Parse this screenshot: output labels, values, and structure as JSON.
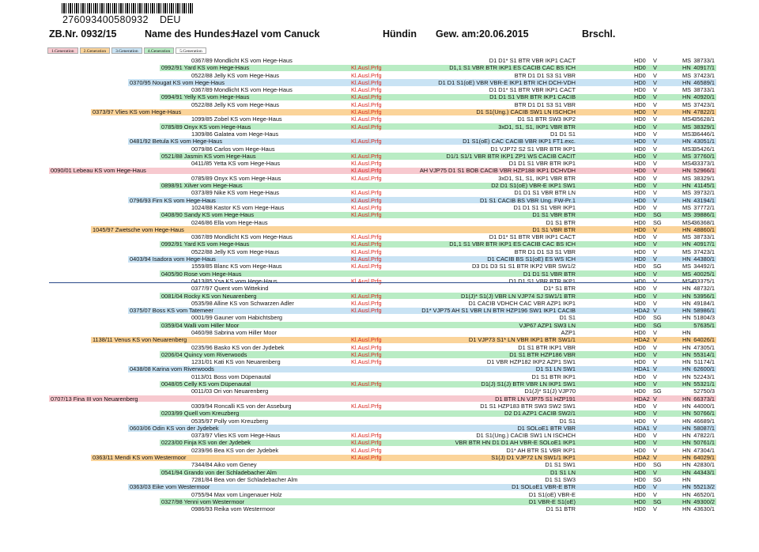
{
  "header": {
    "barcode_number": "276093400580932",
    "country": "DEU",
    "zb_nr": "ZB.Nr. 0932/15",
    "name_label": "Name des Hundes:",
    "dog_name": "Hazel vom Canuck",
    "sex": "Hündin",
    "birth_label": "Gew. am:",
    "birth_date": "20.06.2015",
    "color": "Brschl."
  },
  "generations": [
    {
      "label": "1.Generation",
      "color": "#f7c9cf"
    },
    {
      "label": "2.Generation",
      "color": "#fbd49a"
    },
    {
      "label": "3.Generation",
      "color": "#c9e3f4"
    },
    {
      "label": "4.Generation",
      "color": "#b9ecc4"
    },
    {
      "label": "5.Generation",
      "color": "#ffffff"
    }
  ],
  "rows": [
    {
      "gen": 5,
      "dog": "0367/89 Mondlicht KS vom Hege-Haus",
      "ausl": "",
      "fin": "D1 D1* S1 BTR VBR IKP1 CACT",
      "hd": "HD0",
      "v": "V",
      "c2": "MS",
      "reg": "38733/1"
    },
    {
      "gen": 4,
      "dog": "0992/91 Yard KS vom Hege-Haus",
      "ausl": "Kl.Ausl.Prfg",
      "fin": "D1,1 S1 VBR BTR IKP1 ES CACIB CAC BS ICH",
      "hd": "HD0",
      "v": "V",
      "c2": "HN",
      "reg": "40917/1"
    },
    {
      "gen": 5,
      "dog": "0522/88 Jelly KS vom Hege-Haus",
      "ausl": "Kl.Ausl.Prfg",
      "fin": "BTR D1 D1 S3 S1 VBR",
      "hd": "HD0",
      "v": "V",
      "c2": "MS",
      "reg": "37423/1"
    },
    {
      "gen": 3,
      "dog": "0370/95 Nougat KS vom Hege-Haus",
      "ausl": "Kl.Ausl.Prfg",
      "fin": "D1 D1 S1(oE) VBR VBR-E IKP1 BTR ICH DCH-VDH",
      "hd": "HD0",
      "v": "V",
      "c2": "HN",
      "reg": "46589/1"
    },
    {
      "gen": 5,
      "dog": "0367/89 Mondlicht KS vom Hege-Haus",
      "ausl": "Kl.Ausl.Prfg",
      "fin": "D1 D1* S1 BTR VBR IKP1 CACT",
      "hd": "HD0",
      "v": "V",
      "c2": "MS",
      "reg": "38733/1"
    },
    {
      "gen": 4,
      "dog": "0994/91 Yelly KS vom Hege-Haus",
      "ausl": "Kl.Ausl.Prfg",
      "fin": "D1 D1 S1 VBR BTR IKP1 CACIB",
      "hd": "HD0",
      "v": "V",
      "c2": "HN",
      "reg": "40920/1"
    },
    {
      "gen": 5,
      "dog": "0522/88 Jelly KS vom Hege-Haus",
      "ausl": "Kl.Ausl.Prfg",
      "fin": "BTR D1 D1 S3 S1 VBR",
      "hd": "HD0",
      "v": "V",
      "c2": "MS",
      "reg": "37423/1"
    },
    {
      "gen": 2,
      "dog": "0373/97 Vlies KS vom Hege-Haus",
      "ausl": "Kl.Ausl.Prfg",
      "fin": "D1 S1(Ung.) CACIB SW1 LN ISCHCH",
      "hd": "HD0",
      "v": "V",
      "c2": "HN",
      "reg": "47822/1"
    },
    {
      "gen": 5,
      "dog": "1099/85 Zobel KS vom Hege-Haus",
      "ausl": "Kl.Ausl.Prfg",
      "fin": "D1 S1 BTR SW3 IKP2",
      "hd": "HD0",
      "v": "V",
      "c2": "MS4",
      "reg": "35628/1"
    },
    {
      "gen": 4,
      "dog": "0785/89 Onyx KS vom Hege-Haus",
      "ausl": "Kl.Ausl.Prfg",
      "fin": "3xD1, S1, S1, IKP1 VBR BTR",
      "hd": "HD0",
      "v": "V",
      "c2": "MS",
      "reg": "38329/1"
    },
    {
      "gen": 5,
      "dog": "1309/86 Galatea vom Hege-Haus",
      "ausl": "",
      "fin": "D1 D1 S1",
      "hd": "HD0",
      "v": "V",
      "c2": "MS3",
      "reg": "36446/1"
    },
    {
      "gen": 3,
      "dog": "0481/92 Betula KS vom Hege-Haus",
      "ausl": "Kl.Ausl.Prfg",
      "fin": "D1 S1(oE) CAC CACIB VBR IKP1 FT1.exc.",
      "hd": "HD0",
      "v": "V",
      "c2": "HN",
      "reg": "43051/1"
    },
    {
      "gen": 5,
      "dog": "0079/86 Carlos vom Hege-Haus",
      "ausl": "",
      "fin": "D1 VJP72 S2 S1 VBR BTR IKP1",
      "hd": "HD0",
      "v": "V",
      "c2": "MS3",
      "reg": "35426/1"
    },
    {
      "gen": 4,
      "dog": "0521/88 Jasmin KS vom Hege-Haus",
      "ausl": "Kl.Ausl.Prfg",
      "fin": "D1/1 S1/1 VBR BTR IKP1 ZP1 WS CACIB CACIT",
      "hd": "HD0",
      "v": "V",
      "c2": "MS",
      "reg": "37760/1"
    },
    {
      "gen": 5,
      "dog": "0411/85 Yetta KS vom Hege-Haus",
      "ausl": "Kl.Ausl.Prfg",
      "fin": "D1 D1 S1 VBR BTR IKP1",
      "hd": "HD0",
      "v": "V",
      "c2": "MS4",
      "reg": "33373/1"
    },
    {
      "gen": 1,
      "dog": "0090/01 Lebeau KS vom Hege-Haus",
      "ausl": "Kl.Ausl.Prfg",
      "fin": "AH VJP75 D1 S1 BOB CACIB VBR HZP188 IKP1 DCHVDH",
      "hd": "HD0",
      "v": "V",
      "c2": "HN",
      "reg": "52966/1"
    },
    {
      "gen": 5,
      "dog": "0785/89 Onyx KS vom Hege-Haus",
      "ausl": "Kl.Ausl.Prfg",
      "fin": "3xD1, S1, S1, IKP1 VBR BTR",
      "hd": "HD0",
      "v": "V",
      "c2": "MS",
      "reg": "38329/1"
    },
    {
      "gen": 4,
      "dog": "0898/91 Xilver vom Hege-Haus",
      "ausl": "",
      "fin": "D2 D1 S1(oE) VBR-E IKP1 SW1",
      "hd": "HD0",
      "v": "V",
      "c2": "HN",
      "reg": "41145/1"
    },
    {
      "gen": 5,
      "dog": "0373/89 Nike KS vom Hege-Haus",
      "ausl": "Kl.Ausl.Prfg",
      "fin": "D1 D1 S1 VBR BTR LN",
      "hd": "HD0",
      "v": "V",
      "c2": "MS",
      "reg": "39732/1"
    },
    {
      "gen": 3,
      "dog": "0796/93 Firn KS vom Hege-Haus",
      "ausl": "Kl.Ausl.Prfg",
      "fin": "D1 S1 CACIB BS VBR Ung. FW-Pr.1",
      "hd": "HD0",
      "v": "V",
      "c2": "HN",
      "reg": "43194/1"
    },
    {
      "gen": 5,
      "dog": "1024/88 Kastor KS vom Hege-Haus",
      "ausl": "Kl.Ausl.Prfg",
      "fin": "D1 D1 S1 S1 VBR IKP1",
      "hd": "HD0",
      "v": "V",
      "c2": "MS",
      "reg": "37772/1"
    },
    {
      "gen": 4,
      "dog": "0408/90 Sandy KS vom Hege-Haus",
      "ausl": "Kl.Ausl.Prfg",
      "fin": "D1 S1 VBR BTR",
      "hd": "HD0",
      "v": "SG",
      "c2": "MS",
      "reg": "39886/1"
    },
    {
      "gen": 5,
      "dog": "0246/86 Ella vom Hege-Haus",
      "ausl": "",
      "fin": "D1 S1 BTR",
      "hd": "HD0",
      "v": "SG",
      "c2": "MS4",
      "reg": "36368/1"
    },
    {
      "gen": 2,
      "dog": "1045/97 Zwetsche vom Hege-Haus",
      "ausl": "",
      "fin": "D1 S1 VBR BTR",
      "hd": "HD0",
      "v": "V",
      "c2": "HN",
      "reg": "48860/1"
    },
    {
      "gen": 5,
      "dog": "0367/89 Mondlicht KS vom Hege-Haus",
      "ausl": "Kl.Ausl.Prfg",
      "fin": "D1 D1* S1 BTR VBR IKP1 CACT",
      "hd": "HD0",
      "v": "V",
      "c2": "MS",
      "reg": "38733/1"
    },
    {
      "gen": 4,
      "dog": "0992/91 Yard KS vom Hege-Haus",
      "ausl": "Kl.Ausl.Prfg",
      "fin": "D1,1 S1 VBR BTR IKP1 ES CACIB CAC BS ICH",
      "hd": "HD0",
      "v": "V",
      "c2": "HN",
      "reg": "40917/1"
    },
    {
      "gen": 5,
      "dog": "0522/88 Jelly KS vom Hege-Haus",
      "ausl": "Kl.Ausl.Prfg",
      "fin": "BTR D1 D1 S3 S1 VBR",
      "hd": "HD0",
      "v": "V",
      "c2": "MS",
      "reg": "37423/1"
    },
    {
      "gen": 3,
      "dog": "0403/94 Isadora vom Hege-Haus",
      "ausl": "Kl.Ausl.Prfg",
      "fin": "D1 CACIB BS S1(oE) ES WS ICH",
      "hd": "HD0",
      "v": "V",
      "c2": "HN",
      "reg": "44380/1"
    },
    {
      "gen": 5,
      "dog": "1559/85 Blanc KS vom Hege-Haus",
      "ausl": "Kl.Ausl.Prfg",
      "fin": "D3 D1 D3 S1 S1 BTR IKP2 VBR SW1/2",
      "hd": "HD0",
      "v": "SG",
      "c2": "MS",
      "reg": "34492/1"
    },
    {
      "gen": 4,
      "dog": "0405/90 Rose vom Hege-Haus",
      "ausl": "",
      "fin": "D1 D1 S1 VBR BTR",
      "hd": "HD0",
      "v": "V",
      "c2": "MS",
      "reg": "40025/1"
    },
    {
      "gen": 5,
      "dog": "0413/85 Ysa KS vom Hege-Haus",
      "ausl": "Kl.Ausl.Prfg",
      "fin": "D1 D1 S1 VBR BTR IKP1",
      "hd": "HD0",
      "v": "V",
      "c2": "MS4",
      "reg": "33375/1"
    },
    {
      "gen": 5,
      "dog": "0377/97 Quent vom Wittekind",
      "ausl": "",
      "fin": "D1* S1 BTR",
      "hd": "HD0",
      "v": "V",
      "c2": "HN",
      "reg": "48732/1"
    },
    {
      "gen": 4,
      "dog": "0081/04 Rocky KS von Neuarenberg",
      "ausl": "Kl.Ausl.Prfg",
      "fin": "D1(J)* S1(J) VBR LN VJP74 SJ SW1/1 BTR",
      "hd": "HD0",
      "v": "V",
      "c2": "HN",
      "reg": "53956/1"
    },
    {
      "gen": 5,
      "dog": "0535/98 Alline KS von Schwarzen Adler",
      "ausl": "Kl.Ausl.Prfg",
      "fin": "D1 CACIB VDHCH CAC VBR AZP1 IKP1",
      "hd": "HD0",
      "v": "V",
      "c2": "HN",
      "reg": "49184/1"
    },
    {
      "gen": 3,
      "dog": "0375/07 Boss KS vom Tatemeer",
      "ausl": "Kl.Ausl.Prfg",
      "fin": "D1* VJP75 AH S1 VBR LN BTR HZP196 SW1 IKP1 CACIB",
      "hd": "HDA2",
      "v": "V",
      "c2": "HN",
      "reg": "58986/1"
    },
    {
      "gen": 5,
      "dog": "0001/99 Gauner vom Habichtsberg",
      "ausl": "",
      "fin": "D1 S1",
      "hd": "HD0",
      "v": "SG",
      "c2": "HN",
      "reg": "51804/3"
    },
    {
      "gen": 4,
      "dog": "0359/04 Walli vom Hiller Moor",
      "ausl": "",
      "fin": "VJP67 AZP1 SW3 LN",
      "hd": "HD0",
      "v": "SG",
      "c2": "",
      "reg": "57635/1"
    },
    {
      "gen": 5,
      "dog": "0460/98 Sabrina vom Hiller Moor",
      "ausl": "",
      "fin": "AZP1",
      "hd": "HD0",
      "v": "V",
      "c2": "HN",
      "reg": ""
    },
    {
      "gen": 2,
      "dog": "1138/11 Venus KS von Neuarenberg",
      "ausl": "Kl.Ausl.Prfg",
      "fin": "D1 VJP73 S1* LN VBR IKP1 BTR SW1/1",
      "hd": "HDA2",
      "v": "V",
      "c2": "HN",
      "reg": "64026/1"
    },
    {
      "gen": 5,
      "dog": "0235/96 Basko KS von der Jydebek",
      "ausl": "Kl.Ausl.Prfg",
      "fin": "D1 S1 BTR IKP1 VBR",
      "hd": "HD0",
      "v": "V",
      "c2": "HN",
      "reg": "47305/1"
    },
    {
      "gen": 4,
      "dog": "0206/04 Quincy vom Riverwoods",
      "ausl": "Kl.Ausl.Prfg",
      "fin": "D1 S1 BTR HZP186 VBR",
      "hd": "HD0",
      "v": "V",
      "c2": "HN",
      "reg": "55314/1"
    },
    {
      "gen": 5,
      "dog": "1231/01 Kati KS von Neuarenberg",
      "ausl": "Kl.Ausl.Prfg",
      "fin": "D1 VBR HZP182 IKP2 AZP1 SW1",
      "hd": "HD0",
      "v": "V",
      "c2": "HN",
      "reg": "51174/1"
    },
    {
      "gen": 3,
      "dog": "0438/08 Karina vom Riverwoods",
      "ausl": "",
      "fin": "D1 S1 LN SW1",
      "hd": "HDA1",
      "v": "V",
      "c2": "HN",
      "reg": "62600/1"
    },
    {
      "gen": 5,
      "dog": "0113/01 Boss vom Düpenautal",
      "ausl": "",
      "fin": "D1 S1 BTR IKP1",
      "hd": "HD0",
      "v": "V",
      "c2": "HN",
      "reg": "52243/1"
    },
    {
      "gen": 4,
      "dog": "0048/05 Celly KS vom Düpenautal",
      "ausl": "Kl.Ausl.Prfg",
      "fin": "D1(J) S1(J) BTR VBR LN IKP1 SW1",
      "hd": "HD0",
      "v": "V",
      "c2": "HN",
      "reg": "55321/1"
    },
    {
      "gen": 5,
      "dog": "0011/03 Ori von Neuarenberg",
      "ausl": "",
      "fin": "D1(J)* S1(J) VJP70",
      "hd": "HD0",
      "v": "SG",
      "c2": "",
      "reg": "52750/3"
    },
    {
      "gen": 1,
      "dog": "0707/13 Fina III von Neuarenberg",
      "ausl": "",
      "fin": "D1 BTR LN VJP75 S1 HZP191",
      "hd": "HDA2",
      "v": "V",
      "c2": "HN",
      "reg": "66373/1"
    },
    {
      "gen": 5,
      "dog": "0309/94 Roncalli KS von der Asseburg",
      "ausl": "Kl.Ausl.Prfg",
      "fin": "D1 S1 HZP183 BTR SW3 SW2 SW1",
      "hd": "HD0",
      "v": "V",
      "c2": "HN",
      "reg": "44000/1"
    },
    {
      "gen": 4,
      "dog": "0203/99 Quell vom Kreuzberg",
      "ausl": "",
      "fin": "D2 D1 AZP1 CACIB SW2/1",
      "hd": "HD0",
      "v": "V",
      "c2": "HN",
      "reg": "50766/1"
    },
    {
      "gen": 5,
      "dog": "0535/97 Polly vom Kreuzberg",
      "ausl": "",
      "fin": "D1 S1",
      "hd": "HD0",
      "v": "V",
      "c2": "HN",
      "reg": "46689/1"
    },
    {
      "gen": 3,
      "dog": "0603/06 Odin KS von der Jydebek",
      "ausl": "",
      "fin": "D1 SOLoE1 BTR VBR",
      "hd": "HDA1",
      "v": "V",
      "c2": "HN",
      "reg": "58087/1"
    },
    {
      "gen": 5,
      "dog": "0373/97 Vlies KS vom Hege-Haus",
      "ausl": "Kl.Ausl.Prfg",
      "fin": "D1 S1(Ung.) CACIB SW1 LN ISCHCH",
      "hd": "HD0",
      "v": "V",
      "c2": "HN",
      "reg": "47822/1"
    },
    {
      "gen": 4,
      "dog": "0223/00 Finja KS von der Jydebek",
      "ausl": "Kl.Ausl.Prfg",
      "fin": "VBR BTR HN D1 D1 AH VBR-E SOLoE1 IKP1",
      "hd": "HD0",
      "v": "V",
      "c2": "HN",
      "reg": "50761/1"
    },
    {
      "gen": 5,
      "dog": "0239/96 Bea KS von der Jydebek",
      "ausl": "Kl.Ausl.Prfg",
      "fin": "D1* AH BTR S1 VBR IKP1",
      "hd": "HD0",
      "v": "V",
      "c2": "HN",
      "reg": "47304/1"
    },
    {
      "gen": 2,
      "dog": "0363/11 Mendi KS vom Westermoor",
      "ausl": "Kl.Ausl.Prfg",
      "fin": "S1(J) D1 VJP72 LN SW1/1 IKP1",
      "hd": "HDA2",
      "v": "V",
      "c2": "HN",
      "reg": "64029/1"
    },
    {
      "gen": 5,
      "dog": "7344/84 Aiko vom Geney",
      "ausl": "",
      "fin": "D1 S1 SW1",
      "hd": "HD0",
      "v": "SG",
      "c2": "HN",
      "reg": "42830/1"
    },
    {
      "gen": 4,
      "dog": "0541/94 Grando von der Schladebacher Alm",
      "ausl": "",
      "fin": "D1 S1 LN",
      "hd": "HD0",
      "v": "V",
      "c2": "HN",
      "reg": "44343/1"
    },
    {
      "gen": 5,
      "dog": "7281/84 Bea von der Schladebacher Alm",
      "ausl": "",
      "fin": "D1 S1 SW3",
      "hd": "HD0",
      "v": "SG",
      "c2": "HN",
      "reg": ""
    },
    {
      "gen": 3,
      "dog": "0363/03 Eike vom Westermoor",
      "ausl": "",
      "fin": "D1 SOLoE1 VBR-E BTR",
      "hd": "HD0",
      "v": "V",
      "c2": "HN",
      "reg": "55213/2"
    },
    {
      "gen": 5,
      "dog": "0755/94 Max vom Lingenauer Holz",
      "ausl": "",
      "fin": "D1 S1(oE) VBR-E",
      "hd": "HD0",
      "v": "V",
      "c2": "HN",
      "reg": "46520/1"
    },
    {
      "gen": 4,
      "dog": "0327/98 Yenni vom Westermoor",
      "ausl": "",
      "fin": "D1 VBR-E S1(oE)",
      "hd": "HD0",
      "v": "SG",
      "c2": "HN",
      "reg": "49300/2"
    },
    {
      "gen": 5,
      "dog": "0986/93 Reika vom Westermoor",
      "ausl": "",
      "fin": "D1 S1 BTR",
      "hd": "HD0",
      "v": "V",
      "c2": "HN",
      "reg": "43630/1"
    }
  ]
}
